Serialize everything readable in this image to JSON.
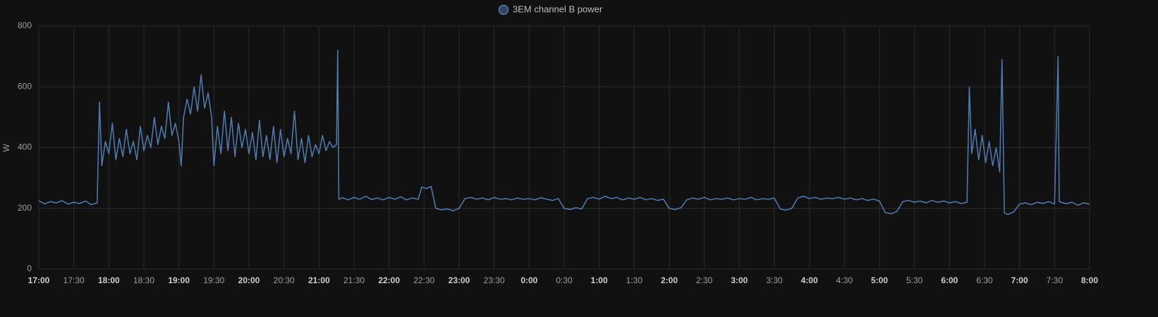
{
  "chart_data": {
    "type": "line",
    "ylabel": "W",
    "ylim": [
      0,
      800
    ],
    "yticks": [
      0,
      200,
      400,
      600,
      800
    ],
    "xlim": [
      "17:00",
      "8:00"
    ],
    "xticks": [
      "17:00",
      "17:30",
      "18:00",
      "18:30",
      "19:00",
      "19:30",
      "20:00",
      "20:30",
      "21:00",
      "21:30",
      "22:00",
      "22:30",
      "23:00",
      "23:30",
      "0:00",
      "0:30",
      "1:00",
      "1:30",
      "2:00",
      "2:30",
      "3:00",
      "3:30",
      "4:00",
      "4:30",
      "5:00",
      "5:30",
      "6:00",
      "6:30",
      "7:00",
      "7:30",
      "8:00"
    ],
    "grid": true,
    "legend": "top",
    "x": [
      "17:00",
      "17:05",
      "17:10",
      "17:15",
      "17:20",
      "17:25",
      "17:30",
      "17:35",
      "17:40",
      "17:45",
      "17:50",
      "17:52",
      "17:54",
      "17:57",
      "18:00",
      "18:03",
      "18:06",
      "18:09",
      "18:12",
      "18:15",
      "18:18",
      "18:21",
      "18:24",
      "18:27",
      "18:30",
      "18:33",
      "18:36",
      "18:39",
      "18:42",
      "18:45",
      "18:48",
      "18:51",
      "18:54",
      "18:57",
      "19:00",
      "19:02",
      "19:04",
      "19:07",
      "19:10",
      "19:13",
      "19:16",
      "19:19",
      "19:22",
      "19:25",
      "19:28",
      "19:30",
      "19:33",
      "19:36",
      "19:39",
      "19:42",
      "19:45",
      "19:48",
      "19:51",
      "19:54",
      "19:57",
      "20:00",
      "20:03",
      "20:06",
      "20:09",
      "20:12",
      "20:15",
      "20:18",
      "20:21",
      "20:24",
      "20:27",
      "20:30",
      "20:33",
      "20:36",
      "20:39",
      "20:42",
      "20:45",
      "20:48",
      "20:51",
      "20:54",
      "20:57",
      "21:00",
      "21:03",
      "21:06",
      "21:09",
      "21:12",
      "21:15",
      "21:16",
      "21:17",
      "21:20",
      "21:25",
      "21:30",
      "21:35",
      "21:40",
      "21:45",
      "21:50",
      "21:55",
      "22:00",
      "22:05",
      "22:10",
      "22:15",
      "22:20",
      "22:25",
      "22:28",
      "22:32",
      "22:36",
      "22:40",
      "22:45",
      "22:50",
      "22:55",
      "23:00",
      "23:05",
      "23:10",
      "23:15",
      "23:20",
      "23:25",
      "23:30",
      "23:35",
      "23:40",
      "23:45",
      "23:50",
      "23:55",
      "0:00",
      "0:05",
      "0:10",
      "0:15",
      "0:20",
      "0:25",
      "0:30",
      "0:35",
      "0:40",
      "0:45",
      "0:50",
      "0:55",
      "1:00",
      "1:05",
      "1:10",
      "1:15",
      "1:20",
      "1:25",
      "1:30",
      "1:35",
      "1:40",
      "1:45",
      "1:50",
      "1:55",
      "2:00",
      "2:05",
      "2:10",
      "2:15",
      "2:20",
      "2:25",
      "2:30",
      "2:35",
      "2:40",
      "2:45",
      "2:50",
      "2:55",
      "3:00",
      "3:05",
      "3:10",
      "3:15",
      "3:20",
      "3:25",
      "3:30",
      "3:35",
      "3:40",
      "3:45",
      "3:50",
      "3:55",
      "4:00",
      "4:05",
      "4:10",
      "4:15",
      "4:20",
      "4:25",
      "4:30",
      "4:35",
      "4:40",
      "4:45",
      "4:50",
      "4:55",
      "5:00",
      "5:05",
      "5:10",
      "5:15",
      "5:20",
      "5:25",
      "5:30",
      "5:35",
      "5:40",
      "5:45",
      "5:50",
      "5:55",
      "6:00",
      "6:05",
      "6:10",
      "6:15",
      "6:17",
      "6:19",
      "6:22",
      "6:25",
      "6:28",
      "6:31",
      "6:34",
      "6:37",
      "6:40",
      "6:43",
      "6:45",
      "6:47",
      "6:50",
      "6:55",
      "7:00",
      "7:05",
      "7:10",
      "7:15",
      "7:20",
      "7:25",
      "7:30",
      "7:33",
      "7:34",
      "7:40",
      "7:45",
      "7:50",
      "7:55",
      "8:00"
    ],
    "series": [
      {
        "name": "3EM channel B power",
        "color": "#4f7db3",
        "values": [
          225,
          215,
          222,
          218,
          225,
          214,
          220,
          216,
          224,
          212,
          218,
          550,
          340,
          420,
          380,
          480,
          360,
          430,
          370,
          460,
          380,
          420,
          360,
          470,
          390,
          440,
          400,
          500,
          410,
          470,
          430,
          550,
          440,
          480,
          420,
          340,
          500,
          560,
          510,
          600,
          520,
          640,
          530,
          580,
          500,
          340,
          470,
          380,
          520,
          390,
          500,
          370,
          480,
          400,
          460,
          380,
          450,
          360,
          490,
          370,
          440,
          360,
          470,
          350,
          460,
          370,
          430,
          380,
          520,
          360,
          430,
          350,
          440,
          370,
          410,
          380,
          440,
          390,
          420,
          400,
          410,
          720,
          230,
          235,
          228,
          236,
          230,
          240,
          229,
          234,
          228,
          236,
          230,
          238,
          228,
          234,
          230,
          270,
          265,
          272,
          200,
          195,
          198,
          192,
          200,
          232,
          236,
          230,
          234,
          228,
          236,
          230,
          232,
          228,
          234,
          230,
          232,
          228,
          235,
          230,
          226,
          232,
          200,
          196,
          202,
          198,
          232,
          236,
          230,
          240,
          232,
          236,
          228,
          234,
          230,
          236,
          228,
          232,
          226,
          230,
          200,
          196,
          202,
          228,
          234,
          230,
          236,
          228,
          232,
          230,
          234,
          228,
          232,
          230,
          236,
          228,
          232,
          230,
          234,
          198,
          194,
          200,
          234,
          240,
          232,
          236,
          230,
          234,
          232,
          236,
          230,
          234,
          228,
          232,
          226,
          230,
          224,
          186,
          182,
          190,
          222,
          226,
          220,
          224,
          218,
          226,
          220,
          224,
          218,
          222,
          216,
          220,
          600,
          380,
          460,
          360,
          440,
          350,
          420,
          340,
          400,
          320,
          690,
          185,
          180,
          188,
          214,
          218,
          212,
          220,
          216,
          222,
          214,
          700,
          222,
          215,
          220,
          210,
          218,
          214
        ]
      }
    ]
  }
}
